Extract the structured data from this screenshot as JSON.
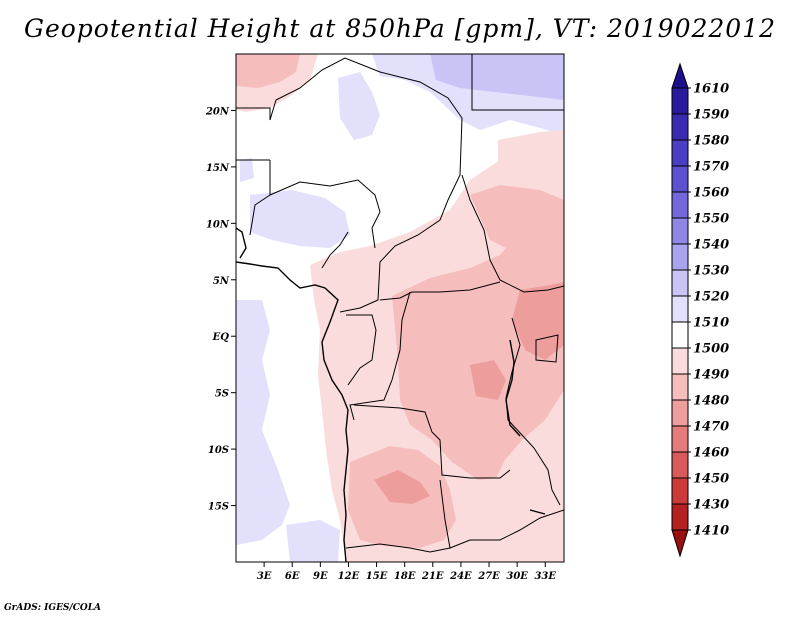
{
  "title": "Geopotential Height at 850hPa [gpm], VT: 2019022012",
  "footer": "GrADS: IGES/COLA",
  "map": {
    "lon_range": [
      0,
      35
    ],
    "lat_range": [
      -20,
      25
    ],
    "lat_ticks": [
      {
        "value": 20,
        "label": "20N"
      },
      {
        "value": 15,
        "label": "15N"
      },
      {
        "value": 10,
        "label": "10N"
      },
      {
        "value": 5,
        "label": "5N"
      },
      {
        "value": 0,
        "label": "EQ"
      },
      {
        "value": -5,
        "label": "5S"
      },
      {
        "value": -10,
        "label": "10S"
      },
      {
        "value": -15,
        "label": "15S"
      }
    ],
    "lon_ticks": [
      {
        "value": 3,
        "label": "3E"
      },
      {
        "value": 6,
        "label": "6E"
      },
      {
        "value": 9,
        "label": "9E"
      },
      {
        "value": 12,
        "label": "12E"
      },
      {
        "value": 15,
        "label": "15E"
      },
      {
        "value": 18,
        "label": "18E"
      },
      {
        "value": 21,
        "label": "21E"
      },
      {
        "value": 24,
        "label": "24E"
      },
      {
        "value": 27,
        "label": "27E"
      },
      {
        "value": 30,
        "label": "30E"
      },
      {
        "value": 33,
        "label": "33E"
      }
    ]
  },
  "colorbar": {
    "levels": [
      "1610",
      "1590",
      "1580",
      "1570",
      "1560",
      "1550",
      "1540",
      "1530",
      "1520",
      "1510",
      "1500",
      "1490",
      "1480",
      "1470",
      "1460",
      "1450",
      "1430",
      "1410"
    ],
    "colors": [
      "#1e0f8c",
      "#2a1a9e",
      "#3a2cb0",
      "#4a3ec2",
      "#5c52cf",
      "#7468dc",
      "#8f86e6",
      "#aaa4ee",
      "#c8c4f5",
      "#e2e0fb",
      "#ffffff",
      "#fbdcdc",
      "#f6bdbd",
      "#ee9d9d",
      "#e47c7c",
      "#d95a5a",
      "#cc3a3a",
      "#b52020",
      "#9a1010"
    ]
  }
}
